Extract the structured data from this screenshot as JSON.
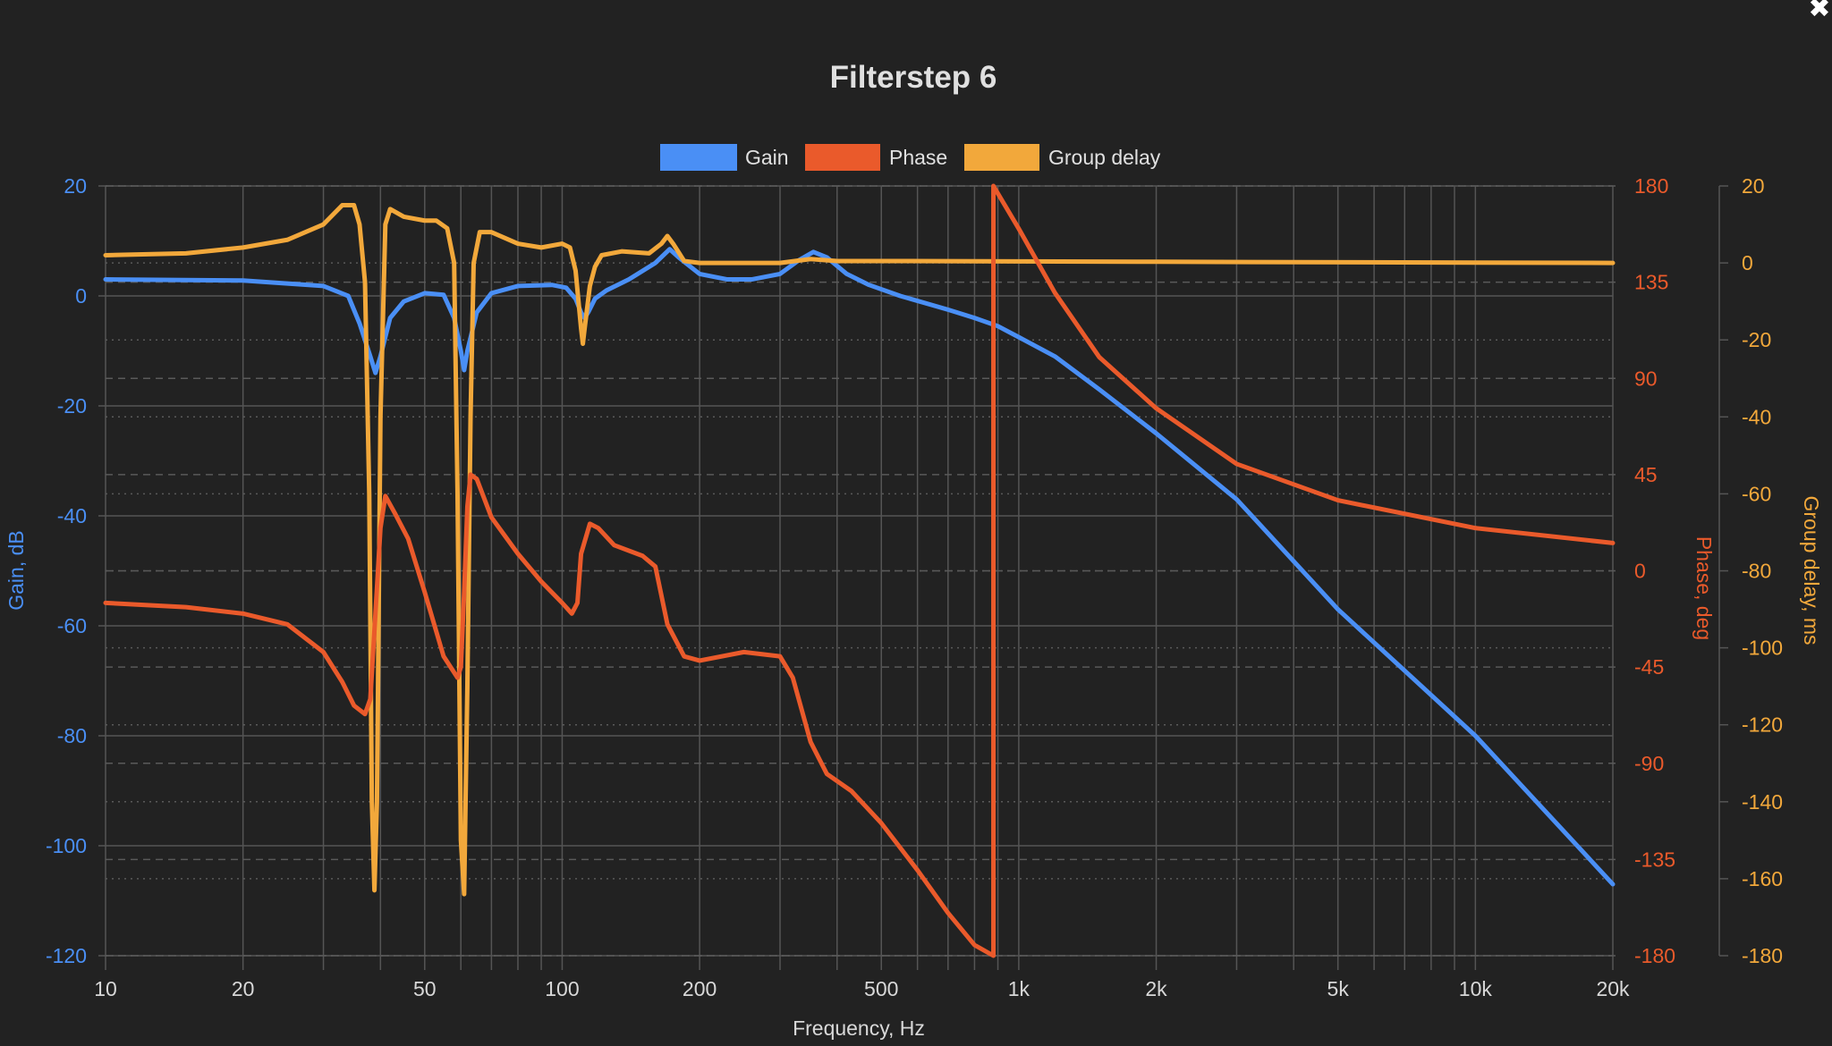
{
  "window": {
    "close_label": "✖"
  },
  "chart_data": {
    "type": "line",
    "title": "Filterstep 6",
    "xlabel": "Frequency, Hz",
    "x_scale": "log",
    "xlim": [
      10,
      20000
    ],
    "x_ticks": [
      10,
      20,
      50,
      100,
      200,
      500,
      1000,
      2000,
      5000,
      10000,
      20000
    ],
    "x_tick_labels": [
      "10",
      "20",
      "50",
      "100",
      "200",
      "500",
      "1k",
      "2k",
      "5k",
      "10k",
      "20k"
    ],
    "legend_position": "top-center",
    "grid": true,
    "axes": {
      "gain": {
        "label": "Gain, dB",
        "position": "left",
        "range": [
          -120,
          20
        ],
        "ticks": [
          20,
          0,
          -20,
          -40,
          -60,
          -80,
          -100,
          -120
        ],
        "color": "#4a8ff5"
      },
      "phase": {
        "label": "Phase, deg",
        "position": "right",
        "range": [
          -180,
          180
        ],
        "ticks": [
          180,
          135,
          90,
          45,
          0,
          -45,
          -90,
          -135,
          -180
        ],
        "color": "#ea5a2b"
      },
      "delay": {
        "label": "Group delay, ms",
        "position": "right-outer",
        "range": [
          -180,
          20
        ],
        "ticks": [
          20,
          0,
          -20,
          -40,
          -60,
          -80,
          -100,
          -120,
          -140,
          -160,
          -180
        ],
        "color": "#f2a83b"
      }
    },
    "series": [
      {
        "name": "Gain",
        "axis": "gain",
        "color": "#4a8ff5",
        "points": [
          [
            10,
            3
          ],
          [
            20,
            2.8
          ],
          [
            30,
            1.8
          ],
          [
            34,
            0
          ],
          [
            36,
            -5
          ],
          [
            38,
            -11
          ],
          [
            39,
            -14
          ],
          [
            40,
            -11
          ],
          [
            42,
            -4
          ],
          [
            45,
            -1
          ],
          [
            50,
            0.5
          ],
          [
            55,
            0.2
          ],
          [
            58,
            -4
          ],
          [
            60,
            -10
          ],
          [
            61,
            -13.5
          ],
          [
            62,
            -10
          ],
          [
            65,
            -3
          ],
          [
            70,
            0.5
          ],
          [
            80,
            1.8
          ],
          [
            95,
            2
          ],
          [
            102,
            1.5
          ],
          [
            107,
            -0.5
          ],
          [
            110,
            -3
          ],
          [
            112,
            -4
          ],
          [
            114,
            -3
          ],
          [
            118,
            -0.5
          ],
          [
            125,
            1
          ],
          [
            140,
            3
          ],
          [
            160,
            6
          ],
          [
            172,
            8.5
          ],
          [
            180,
            7
          ],
          [
            200,
            4
          ],
          [
            230,
            3
          ],
          [
            260,
            3
          ],
          [
            300,
            4
          ],
          [
            330,
            6.5
          ],
          [
            355,
            8
          ],
          [
            380,
            7
          ],
          [
            420,
            4
          ],
          [
            470,
            2
          ],
          [
            550,
            0
          ],
          [
            700,
            -2.5
          ],
          [
            800,
            -4
          ],
          [
            900,
            -5.5
          ],
          [
            1000,
            -7.5
          ],
          [
            1200,
            -11
          ],
          [
            1500,
            -17
          ],
          [
            2000,
            -25
          ],
          [
            3000,
            -37
          ],
          [
            5000,
            -57
          ],
          [
            10000,
            -80
          ],
          [
            20000,
            -107
          ]
        ]
      },
      {
        "name": "Phase",
        "axis": "phase",
        "color": "#ea5a2b",
        "points": [
          [
            10,
            -15
          ],
          [
            15,
            -17
          ],
          [
            20,
            -20
          ],
          [
            25,
            -25
          ],
          [
            30,
            -38
          ],
          [
            33,
            -52
          ],
          [
            35,
            -63
          ],
          [
            37,
            -67
          ],
          [
            38,
            -60
          ],
          [
            39,
            -20
          ],
          [
            40,
            20
          ],
          [
            41,
            35
          ],
          [
            43,
            27
          ],
          [
            46,
            15
          ],
          [
            50,
            -10
          ],
          [
            55,
            -40
          ],
          [
            59,
            -50
          ],
          [
            60,
            -45
          ],
          [
            61,
            -10
          ],
          [
            62,
            30
          ],
          [
            63,
            45
          ],
          [
            65,
            43
          ],
          [
            70,
            25
          ],
          [
            80,
            8
          ],
          [
            90,
            -5
          ],
          [
            100,
            -15
          ],
          [
            105,
            -20
          ],
          [
            108,
            -15
          ],
          [
            110,
            8
          ],
          [
            115,
            22
          ],
          [
            120,
            20
          ],
          [
            130,
            12
          ],
          [
            150,
            7
          ],
          [
            160,
            2
          ],
          [
            170,
            -25
          ],
          [
            185,
            -40
          ],
          [
            200,
            -42
          ],
          [
            250,
            -38
          ],
          [
            300,
            -40
          ],
          [
            320,
            -50
          ],
          [
            350,
            -80
          ],
          [
            380,
            -95
          ],
          [
            430,
            -103
          ],
          [
            500,
            -118
          ],
          [
            600,
            -140
          ],
          [
            700,
            -160
          ],
          [
            800,
            -175
          ],
          [
            880,
            -180
          ],
          [
            880,
            180
          ],
          [
            1000,
            160
          ],
          [
            1200,
            130
          ],
          [
            1500,
            100
          ],
          [
            2000,
            76
          ],
          [
            3000,
            50
          ],
          [
            5000,
            33
          ],
          [
            10000,
            20
          ],
          [
            20000,
            13
          ]
        ]
      },
      {
        "name": "Group delay",
        "axis": "delay",
        "color": "#f2a83b",
        "points": [
          [
            10,
            2
          ],
          [
            15,
            2.5
          ],
          [
            20,
            4
          ],
          [
            25,
            6
          ],
          [
            30,
            10
          ],
          [
            33,
            15
          ],
          [
            35,
            15
          ],
          [
            36,
            10
          ],
          [
            37,
            -5
          ],
          [
            37.8,
            -60
          ],
          [
            38.3,
            -140
          ],
          [
            38.8,
            -163
          ],
          [
            39.3,
            -140
          ],
          [
            40,
            -40
          ],
          [
            41,
            10
          ],
          [
            42,
            14
          ],
          [
            45,
            12
          ],
          [
            50,
            11
          ],
          [
            53,
            11
          ],
          [
            56,
            9
          ],
          [
            58,
            0
          ],
          [
            59,
            -60
          ],
          [
            60,
            -150
          ],
          [
            61,
            -164
          ],
          [
            62,
            -110
          ],
          [
            63,
            -40
          ],
          [
            64,
            0
          ],
          [
            66,
            8
          ],
          [
            70,
            8
          ],
          [
            80,
            5
          ],
          [
            90,
            4
          ],
          [
            100,
            5
          ],
          [
            104,
            4
          ],
          [
            107,
            -2
          ],
          [
            110,
            -17
          ],
          [
            111,
            -21
          ],
          [
            112,
            -17
          ],
          [
            115,
            -6
          ],
          [
            118,
            -1
          ],
          [
            122,
            2
          ],
          [
            135,
            3
          ],
          [
            155,
            2.5
          ],
          [
            165,
            5
          ],
          [
            170,
            7
          ],
          [
            175,
            5
          ],
          [
            185,
            0.5
          ],
          [
            200,
            0
          ],
          [
            300,
            0
          ],
          [
            350,
            1
          ],
          [
            400,
            0.5
          ],
          [
            500,
            0.5
          ],
          [
            1000,
            0.4
          ],
          [
            2000,
            0.3
          ],
          [
            20000,
            0
          ]
        ]
      }
    ]
  }
}
